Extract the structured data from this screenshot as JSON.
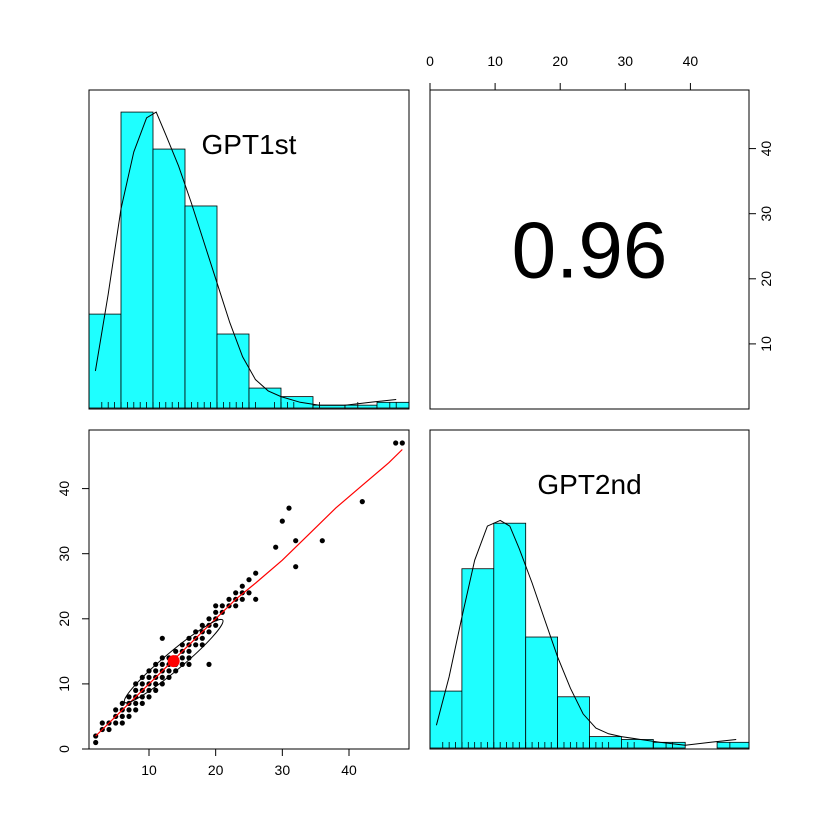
{
  "chart_data": {
    "type": "pairs",
    "variables": [
      "GPT1st",
      "GPT2nd"
    ],
    "correlation": "0.96",
    "axis_ticks": [
      0,
      10,
      20,
      30,
      40
    ],
    "xlim": [
      1,
      49
    ],
    "ylim": [
      0,
      49
    ],
    "colors": {
      "histogram_fill": "#1EFFFF",
      "loess_line": "#FF0000",
      "mean_point": "#FF0000",
      "points": "#000000"
    },
    "hist_breaks": [
      0,
      5,
      10,
      15,
      20,
      25,
      30,
      35,
      40,
      45,
      50
    ],
    "hist_gpt1st_density": [
      0.033,
      0.104,
      0.091,
      0.071,
      0.026,
      0.007,
      0.004,
      0.001,
      0.001,
      0.002
    ],
    "hist_gpt2nd_density": [
      0.02,
      0.063,
      0.079,
      0.039,
      0.018,
      0.004,
      0.003,
      0.002,
      0.0,
      0.002
    ],
    "density_gpt1st": {
      "x": [
        1,
        3,
        5,
        7,
        9,
        10.5,
        12,
        14,
        16,
        18,
        20,
        22,
        24,
        26,
        28,
        30,
        33,
        36,
        40,
        44,
        48
      ],
      "y": [
        0.013,
        0.04,
        0.07,
        0.09,
        0.102,
        0.104,
        0.096,
        0.085,
        0.072,
        0.058,
        0.044,
        0.03,
        0.018,
        0.01,
        0.006,
        0.004,
        0.002,
        0.001,
        0.001,
        0.002,
        0.003
      ]
    },
    "density_gpt2nd": {
      "x": [
        1,
        3,
        5,
        7,
        9,
        11,
        12.5,
        14,
        16,
        18,
        20,
        22,
        24,
        26,
        28,
        30,
        33,
        36,
        40,
        44,
        48
      ],
      "y": [
        0.008,
        0.025,
        0.046,
        0.066,
        0.078,
        0.08,
        0.078,
        0.07,
        0.058,
        0.045,
        0.032,
        0.021,
        0.012,
        0.007,
        0.005,
        0.004,
        0.003,
        0.002,
        0.001,
        0.002,
        0.003
      ]
    },
    "rug_gpt1st": [
      2,
      3,
      4,
      5,
      6,
      7,
      8,
      9,
      10,
      11,
      12,
      13,
      14,
      15,
      16,
      17,
      18,
      19,
      20,
      21,
      22,
      23,
      24,
      25,
      26,
      29,
      30,
      31,
      32,
      36,
      42,
      47,
      48
    ],
    "rug_gpt2nd": [
      2,
      3,
      4,
      5,
      6,
      7,
      8,
      9,
      10,
      11,
      12,
      13,
      14,
      15,
      16,
      17,
      18,
      19,
      20,
      21,
      22,
      23,
      24,
      25,
      26,
      27,
      28,
      31,
      32,
      35,
      37,
      38,
      47
    ],
    "scatter": {
      "x": [
        2,
        2,
        3,
        3,
        4,
        4,
        5,
        5,
        5,
        6,
        6,
        6,
        6,
        7,
        7,
        7,
        7,
        8,
        8,
        8,
        8,
        8,
        9,
        9,
        9,
        9,
        9,
        10,
        10,
        10,
        10,
        10,
        11,
        11,
        11,
        11,
        11,
        12,
        12,
        12,
        12,
        12,
        13,
        13,
        13,
        13,
        14,
        14,
        14,
        14,
        15,
        15,
        15,
        15,
        16,
        16,
        16,
        16,
        16,
        17,
        17,
        17,
        18,
        18,
        18,
        18,
        19,
        19,
        19,
        20,
        20,
        20,
        20,
        21,
        21,
        22,
        22,
        23,
        23,
        23,
        24,
        24,
        24,
        25,
        25,
        26,
        26,
        19,
        12,
        29,
        30,
        31,
        32,
        32,
        36,
        42,
        47,
        48
      ],
      "y": [
        1,
        2,
        3,
        4,
        3,
        4,
        4,
        5,
        6,
        5,
        6,
        7,
        4,
        6,
        7,
        8,
        5,
        7,
        8,
        9,
        10,
        6,
        8,
        9,
        10,
        11,
        7,
        9,
        10,
        11,
        12,
        8,
        10,
        11,
        12,
        13,
        9,
        11,
        12,
        13,
        14,
        10,
        12,
        13,
        14,
        11,
        13,
        14,
        15,
        12,
        14,
        15,
        16,
        13,
        14,
        15,
        16,
        17,
        13,
        16,
        17,
        18,
        17,
        18,
        19,
        16,
        18,
        19,
        20,
        19,
        20,
        21,
        22,
        21,
        22,
        22,
        23,
        22,
        23,
        24,
        23,
        24,
        25,
        24,
        26,
        23,
        27,
        13,
        17,
        31,
        35,
        37,
        32,
        28,
        32,
        38,
        47,
        47
      ]
    },
    "loess": {
      "x": [
        2,
        5,
        8,
        11,
        14,
        17,
        20,
        23,
        26,
        30,
        34,
        38,
        42,
        46,
        48
      ],
      "y": [
        2,
        5,
        8,
        11,
        14,
        17,
        20,
        23,
        25.5,
        29,
        33,
        37,
        40.5,
        44,
        46
      ]
    },
    "mean_point": {
      "x": 13.7,
      "y": 13.5
    }
  }
}
